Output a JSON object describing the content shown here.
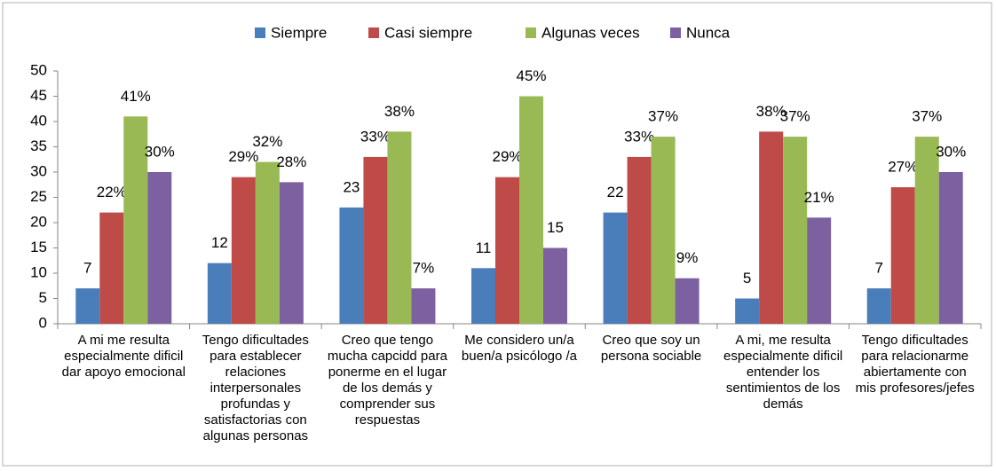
{
  "chart_data": {
    "type": "bar",
    "categories": [
      "A mi me resulta especialmente dificil dar apoyo emocional",
      "Tengo dificultades para establecer relaciones interpersonales profundas y satisfactorias con algunas personas",
      "Creo que tengo mucha capcidd para ponerme en el lugar de los demás y comprender sus respuestas",
      "Me considero un/a buen/a psicólogo /a",
      "Creo que soy un persona sociable",
      "A mi, me resulta especialmente dificil entender los sentimientos de los demás",
      "Tengo dificultades para relacionarme abiertamente con mis profesores/jefes"
    ],
    "series": [
      {
        "name": "Siempre",
        "color": "#4a7ebb",
        "values": [
          7,
          12,
          23,
          11,
          22,
          5,
          7
        ]
      },
      {
        "name": "Casi siempre",
        "color": "#be4b48",
        "values": [
          22,
          29,
          33,
          29,
          33,
          38,
          27
        ],
        "value_labels": [
          "22%",
          "29%",
          "33%",
          "29%",
          "33%",
          "38%",
          "27%"
        ]
      },
      {
        "name": "Algunas veces",
        "color": "#98b954",
        "values": [
          41,
          32,
          38,
          45,
          37,
          37,
          37
        ],
        "value_labels": [
          "41%",
          "32%",
          "38%",
          "45%",
          "37%",
          "37%",
          "37%"
        ]
      },
      {
        "name": "Nunca",
        "color": "#7d60a0",
        "values": [
          30,
          28,
          7,
          15,
          9,
          21,
          30
        ],
        "value_labels": [
          "30%",
          "28%",
          "7%",
          "15",
          "9%",
          "21%",
          "30%"
        ]
      }
    ],
    "ylim": [
      0,
      50
    ],
    "yticks": [
      0,
      5,
      10,
      15,
      20,
      25,
      30,
      35,
      40,
      45,
      50
    ],
    "grid": false,
    "legend": "top"
  }
}
